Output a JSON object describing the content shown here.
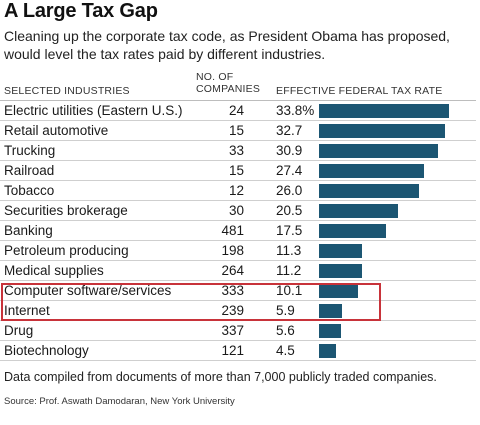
{
  "title": "A Large Tax Gap",
  "subtitle": "Cleaning up the corporate tax code, as President Obama has proposed, would level the tax rates paid by different industries.",
  "headers": {
    "industries": "SELECTED INDUSTRIES",
    "companies_line1": "NO. OF",
    "companies_line2": "COMPANIES",
    "rate": "EFFECTIVE FEDERAL TAX RATE"
  },
  "footnote": "Data compiled from documents of more than 7,000 publicly traded companies.",
  "source": "Source: Prof. Aswath Damodaran, New York University",
  "colors": {
    "bar": "#1c5673",
    "highlight": "#c8333a"
  },
  "highlighted_rows": [
    "Computer software/services",
    "Internet"
  ],
  "chart_data": {
    "type": "bar",
    "orientation": "horizontal",
    "xlabel": "EFFECTIVE FEDERAL TAX RATE",
    "xlim": [
      0,
      33.8
    ],
    "categories": [
      "Electric utilities (Eastern U.S.)",
      "Retail automotive",
      "Trucking",
      "Railroad",
      "Tobacco",
      "Securities brokerage",
      "Banking",
      "Petroleum producing",
      "Medical supplies",
      "Computer software/services",
      "Internet",
      "Drug",
      "Biotechnology"
    ],
    "companies": [
      24,
      15,
      33,
      15,
      12,
      30,
      481,
      198,
      264,
      333,
      239,
      337,
      121
    ],
    "values": [
      33.8,
      32.7,
      30.9,
      27.4,
      26.0,
      20.5,
      17.5,
      11.3,
      11.2,
      10.1,
      5.9,
      5.6,
      4.5
    ],
    "value_labels": [
      "33.8%",
      "32.7",
      "30.9",
      "27.4",
      "26.0",
      "20.5",
      "17.5",
      "11.3",
      "11.2",
      "10.1",
      "5.9",
      "5.6",
      "4.5"
    ]
  }
}
